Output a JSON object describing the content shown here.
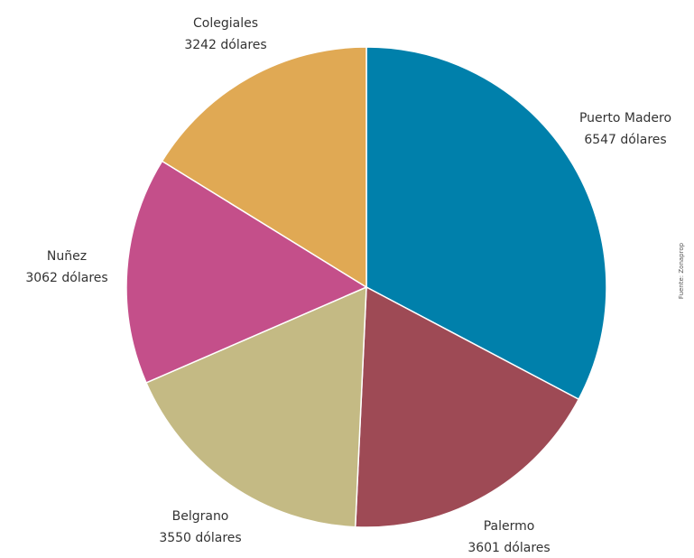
{
  "chart_data": {
    "type": "pie",
    "start_angle_deg": 0,
    "direction": "clockwise",
    "slices": [
      {
        "label": "Puerto Madero",
        "value": 6547,
        "value_label": "6547 dólares",
        "color": "#0080ab"
      },
      {
        "label": "Palermo",
        "value": 3601,
        "value_label": "3601 dólares",
        "color": "#9e4a55"
      },
      {
        "label": "Belgrano",
        "value": 3550,
        "value_label": "3550 dólares",
        "color": "#c4ba84"
      },
      {
        "label": "Nuñez",
        "value": 3062,
        "value_label": "3062 dólares",
        "color": "#c44f8a"
      },
      {
        "label": "Colegiales",
        "value": 3242,
        "value_label": "3242 dólares",
        "color": "#e0a954"
      }
    ],
    "source_note": "Fuente: Zonaprop"
  }
}
